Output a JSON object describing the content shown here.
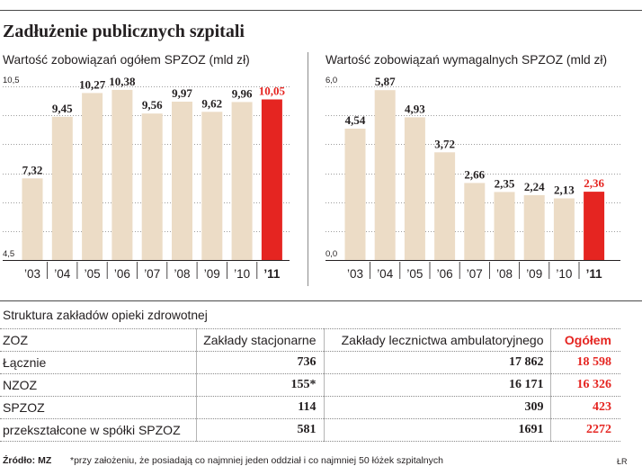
{
  "header": {
    "title": "Zadłużenie publicznych szpitali"
  },
  "colors": {
    "text": "#231f20",
    "bar": "#ecdcc6",
    "highlight": "#e52521",
    "grid": "#9d9d9d",
    "rule": "#4a4a4a",
    "separator": "#8c8c8c"
  },
  "chart_data": [
    {
      "type": "bar",
      "title": "Wartość zobowiązań ogółem SPZOZ (mld zł)",
      "categories": [
        "’03",
        "’04",
        "’05",
        "’06",
        "’07",
        "’08",
        "’09",
        "’10",
        "’11"
      ],
      "values": [
        7.32,
        9.45,
        10.27,
        10.38,
        9.56,
        9.97,
        9.62,
        9.96,
        10.05
      ],
      "ylim": [
        4.5,
        10.5
      ],
      "yticks": [
        {
          "value": 10.5,
          "label": "10,5"
        },
        {
          "value": 4.5,
          "label": "4,5"
        }
      ],
      "grid": true,
      "highlight_index": 8
    },
    {
      "type": "bar",
      "title": "Wartość zobowiązań wymagalnych SPZOZ (mld zł)",
      "categories": [
        "’03",
        "’04",
        "’05",
        "’06",
        "’07",
        "’08",
        "’09",
        "’10",
        "’11"
      ],
      "values": [
        4.54,
        5.87,
        4.93,
        3.72,
        2.66,
        2.35,
        2.24,
        2.13,
        2.36
      ],
      "ylim": [
        0,
        6
      ],
      "yticks": [
        {
          "value": 6,
          "label": "6,0"
        },
        {
          "value": 0,
          "label": "0,0"
        }
      ],
      "grid": true,
      "highlight_index": 8
    }
  ],
  "table": {
    "title": "Struktura zakładów opieki zdrowotnej",
    "headers": {
      "zoz": "ZOZ",
      "stationary": "Zakłady stacjonarne",
      "ambulatory": "Zakłady lecznictwa ambulatoryjnego",
      "total": "Ogółem"
    },
    "rows": [
      {
        "zoz": "Łącznie",
        "stationary": "736",
        "ambulatory": "17 862",
        "total": "18 598"
      },
      {
        "zoz": "NZOZ",
        "stationary": "155*",
        "ambulatory": "16 171",
        "total": "16 326"
      },
      {
        "zoz": "SPZOZ",
        "stationary": "114",
        "ambulatory": "309",
        "total": "423"
      },
      {
        "zoz": "przekształcone w spółki SPZOZ",
        "stationary": "581",
        "ambulatory": "1691",
        "total": "2272"
      }
    ]
  },
  "footer": {
    "source": "Źródło: MZ",
    "note": "*przy założeniu, że posiadają co najmniej jeden oddział i co najmniej 50 łóżek szpitalnych",
    "credit": "ŁR"
  }
}
